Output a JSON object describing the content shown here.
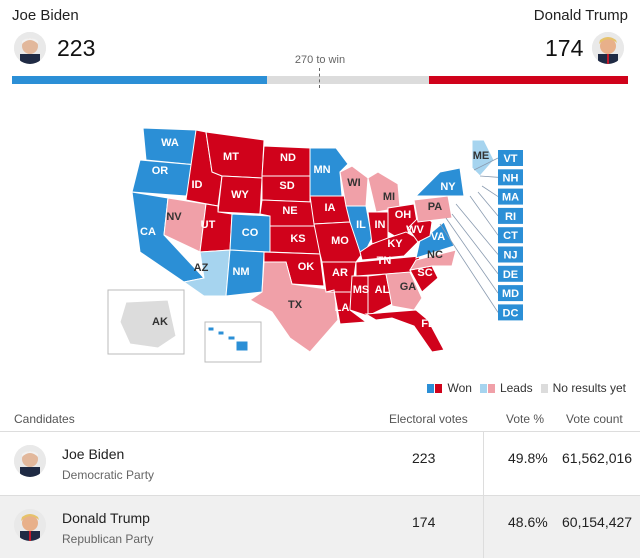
{
  "header": {
    "left": {
      "name": "Joe Biden",
      "electoral_votes": "223"
    },
    "right": {
      "name": "Donald Trump",
      "electoral_votes": "174"
    },
    "threshold_label": "270 to win",
    "progress": {
      "dem_votes": 223,
      "rep_votes": 174,
      "total": 538,
      "threshold": 270
    }
  },
  "colors": {
    "won_dem": "#2b8fd6",
    "won_rep": "#d0021b",
    "lead_dem": "#a6d4ef",
    "lead_rep": "#f0a0a8",
    "no_results": "#dcdcdc"
  },
  "map": {
    "states": [
      {
        "abbr": "WA",
        "status": "won_dem"
      },
      {
        "abbr": "OR",
        "status": "won_dem"
      },
      {
        "abbr": "CA",
        "status": "won_dem"
      },
      {
        "abbr": "NV",
        "status": "lead_rep"
      },
      {
        "abbr": "ID",
        "status": "won_rep"
      },
      {
        "abbr": "MT",
        "status": "won_rep"
      },
      {
        "abbr": "WY",
        "status": "won_rep"
      },
      {
        "abbr": "UT",
        "status": "won_rep"
      },
      {
        "abbr": "AZ",
        "status": "lead_dem"
      },
      {
        "abbr": "CO",
        "status": "won_dem"
      },
      {
        "abbr": "NM",
        "status": "won_dem"
      },
      {
        "abbr": "ND",
        "status": "won_rep"
      },
      {
        "abbr": "SD",
        "status": "won_rep"
      },
      {
        "abbr": "NE",
        "status": "won_rep"
      },
      {
        "abbr": "KS",
        "status": "won_rep"
      },
      {
        "abbr": "OK",
        "status": "won_rep"
      },
      {
        "abbr": "TX",
        "status": "lead_rep"
      },
      {
        "abbr": "MN",
        "status": "won_dem"
      },
      {
        "abbr": "IA",
        "status": "won_rep"
      },
      {
        "abbr": "MO",
        "status": "won_rep"
      },
      {
        "abbr": "AR",
        "status": "won_rep"
      },
      {
        "abbr": "LA",
        "status": "won_rep"
      },
      {
        "abbr": "WI",
        "status": "lead_rep"
      },
      {
        "abbr": "IL",
        "status": "won_dem"
      },
      {
        "abbr": "MI",
        "status": "lead_rep"
      },
      {
        "abbr": "IN",
        "status": "won_rep"
      },
      {
        "abbr": "OH",
        "status": "won_rep"
      },
      {
        "abbr": "KY",
        "status": "won_rep"
      },
      {
        "abbr": "TN",
        "status": "won_rep"
      },
      {
        "abbr": "MS",
        "status": "won_rep"
      },
      {
        "abbr": "AL",
        "status": "won_rep"
      },
      {
        "abbr": "GA",
        "status": "lead_rep"
      },
      {
        "abbr": "FL",
        "status": "won_rep"
      },
      {
        "abbr": "SC",
        "status": "won_rep"
      },
      {
        "abbr": "NC",
        "status": "lead_rep"
      },
      {
        "abbr": "VA",
        "status": "won_dem"
      },
      {
        "abbr": "WV",
        "status": "won_rep"
      },
      {
        "abbr": "PA",
        "status": "lead_rep"
      },
      {
        "abbr": "NY",
        "status": "won_dem"
      },
      {
        "abbr": "ME",
        "status": "lead_dem"
      },
      {
        "abbr": "AK",
        "status": "no_results"
      },
      {
        "abbr": "HI",
        "status": "won_dem"
      }
    ],
    "small_states": [
      {
        "abbr": "VT",
        "status": "won_dem"
      },
      {
        "abbr": "NH",
        "status": "won_dem"
      },
      {
        "abbr": "MA",
        "status": "won_dem"
      },
      {
        "abbr": "RI",
        "status": "won_dem"
      },
      {
        "abbr": "CT",
        "status": "won_dem"
      },
      {
        "abbr": "NJ",
        "status": "won_dem"
      },
      {
        "abbr": "DE",
        "status": "won_dem"
      },
      {
        "abbr": "MD",
        "status": "won_dem"
      },
      {
        "abbr": "DC",
        "status": "won_dem"
      }
    ]
  },
  "legend": {
    "won": "Won",
    "leads": "Leads",
    "no_results": "No results yet"
  },
  "table": {
    "headers": {
      "candidates": "Candidates",
      "electoral_votes": "Electoral votes",
      "vote_pct": "Vote %",
      "vote_count": "Vote count"
    },
    "rows": [
      {
        "name": "Joe Biden",
        "party": "Democratic Party",
        "electoral_votes": "223",
        "vote_pct": "49.8%",
        "vote_count": "61,562,016"
      },
      {
        "name": "Donald Trump",
        "party": "Republican Party",
        "electoral_votes": "174",
        "vote_pct": "48.6%",
        "vote_count": "60,154,427"
      }
    ]
  }
}
